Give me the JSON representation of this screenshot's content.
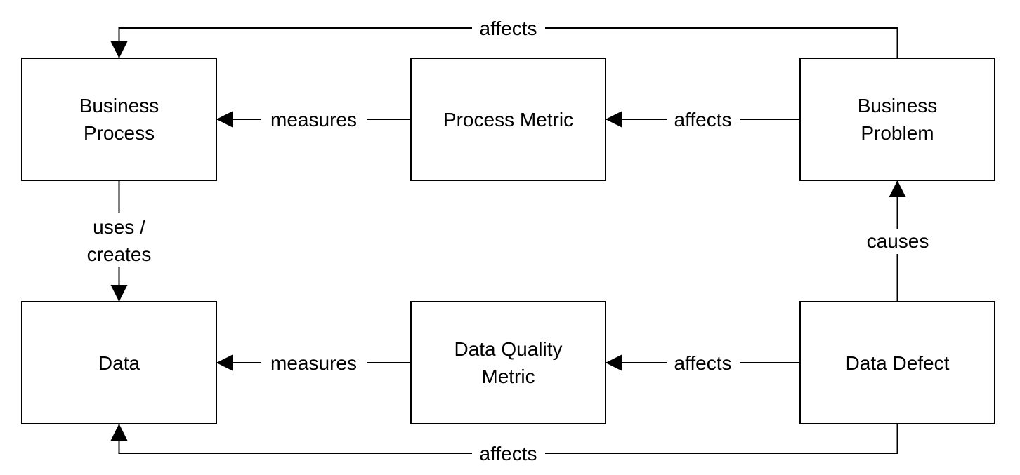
{
  "diagram": {
    "nodes": [
      {
        "id": "business-process",
        "lines": [
          "Business",
          "Process"
        ]
      },
      {
        "id": "process-metric",
        "lines": [
          "Process Metric"
        ]
      },
      {
        "id": "business-problem",
        "lines": [
          "Business",
          "Problem"
        ]
      },
      {
        "id": "data",
        "lines": [
          "Data"
        ]
      },
      {
        "id": "data-quality-metric",
        "lines": [
          "Data Quality",
          "Metric"
        ]
      },
      {
        "id": "data-defect",
        "lines": [
          "Data Defect"
        ]
      }
    ],
    "edges": [
      {
        "id": "problem-to-process",
        "from": "business-problem",
        "to": "business-process",
        "label": "affects"
      },
      {
        "id": "metric-to-process",
        "from": "process-metric",
        "to": "business-process",
        "label": "measures"
      },
      {
        "id": "problem-to-metric",
        "from": "business-problem",
        "to": "process-metric",
        "label": "affects"
      },
      {
        "id": "process-to-data",
        "from": "business-process",
        "to": "data",
        "label_lines": [
          "uses /",
          "creates"
        ]
      },
      {
        "id": "defect-to-problem",
        "from": "data-defect",
        "to": "business-problem",
        "label": "causes"
      },
      {
        "id": "dq-to-data",
        "from": "data-quality-metric",
        "to": "data",
        "label": "measures"
      },
      {
        "id": "defect-to-dq",
        "from": "data-defect",
        "to": "data-quality-metric",
        "label": "affects"
      },
      {
        "id": "defect-to-data",
        "from": "data-defect",
        "to": "data",
        "label": "affects"
      }
    ]
  }
}
